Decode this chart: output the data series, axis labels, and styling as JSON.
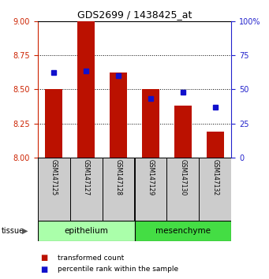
{
  "title": "GDS2699 / 1438425_at",
  "samples": [
    "GSM147125",
    "GSM147127",
    "GSM147128",
    "GSM147129",
    "GSM147130",
    "GSM147132"
  ],
  "red_values": [
    8.5,
    9.0,
    8.62,
    8.5,
    8.38,
    8.19
  ],
  "blue_values": [
    8.62,
    8.635,
    8.6,
    8.435,
    8.48,
    8.37
  ],
  "ylim_left": [
    8.0,
    9.0
  ],
  "ylim_right": [
    0,
    100
  ],
  "yticks_left": [
    8.0,
    8.25,
    8.5,
    8.75,
    9.0
  ],
  "yticks_right": [
    0,
    25,
    50,
    75,
    100
  ],
  "grid_values": [
    8.25,
    8.5,
    8.75
  ],
  "tissue_groups": [
    {
      "label": "epithelium",
      "start": 0,
      "end": 3,
      "color": "#AAFFAA"
    },
    {
      "label": "mesenchyme",
      "start": 3,
      "end": 6,
      "color": "#44DD44"
    }
  ],
  "bar_color": "#BB1100",
  "marker_color": "#1111CC",
  "bar_bottom": 8.0,
  "bar_width": 0.55,
  "label_color_red": "#CC2200",
  "label_color_blue": "#2222CC",
  "bg_label_row": "#CCCCCC",
  "legend_red_label": "transformed count",
  "legend_blue_label": "percentile rank within the sample"
}
